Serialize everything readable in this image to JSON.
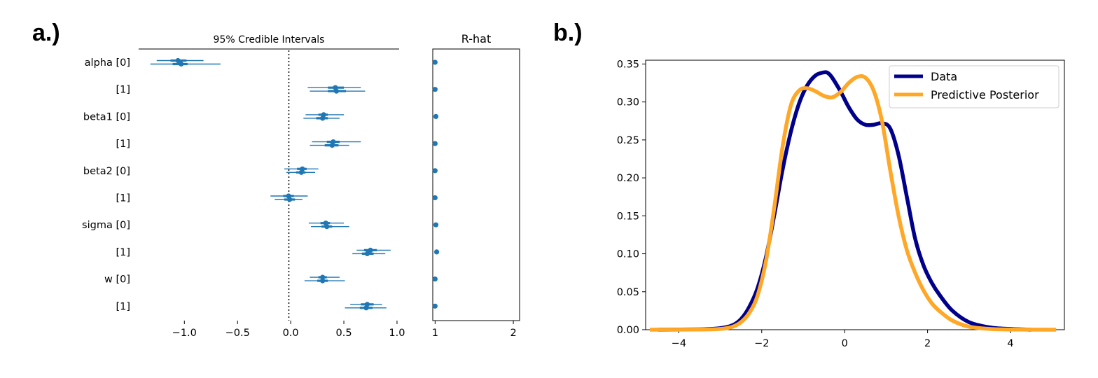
{
  "panel_a": {
    "label": "a.)",
    "forest_title": "95% Credible Intervals",
    "rhat_title": "R-hat",
    "row_labels": [
      "alpha [0]",
      "[1]",
      "beta1 [0]",
      "[1]",
      "beta2 [0]",
      "[1]",
      "sigma [0]",
      "[1]",
      "w [0]",
      "[1]"
    ],
    "x_ticks": [
      "−1.0",
      "−0.5",
      "0.0",
      "0.5",
      "1.0"
    ],
    "rhat_ticks": [
      "1",
      "2"
    ]
  },
  "panel_b": {
    "label": "b.)",
    "y_ticks": [
      "0.00",
      "0.05",
      "0.10",
      "0.15",
      "0.20",
      "0.25",
      "0.30",
      "0.35"
    ],
    "x_ticks": [
      "−4",
      "−2",
      "0",
      "2",
      "4"
    ],
    "legend": [
      "Data",
      "Predictive Posterior"
    ]
  },
  "colors": {
    "forest": "#1f77b4",
    "data": "#00008b",
    "posterior": "#ffa726"
  },
  "chart_data": [
    {
      "type": "forest",
      "title": "95% Credible Intervals",
      "xlim": [
        -1.43,
        1.02
      ],
      "vline": 0.0,
      "parameters": [
        {
          "name": "alpha [0]",
          "chains": [
            {
              "mean": -1.06,
              "hdi50": [
                -1.13,
                -0.98
              ],
              "hdi95": [
                -1.26,
                -0.82
              ]
            },
            {
              "mean": -1.03,
              "hdi50": [
                -1.11,
                -0.97
              ],
              "hdi95": [
                -1.32,
                -0.66
              ]
            }
          ]
        },
        {
          "name": "[1]",
          "chains": [
            {
              "mean": 0.42,
              "hdi50": [
                0.35,
                0.5
              ],
              "hdi95": [
                0.16,
                0.66
              ]
            },
            {
              "mean": 0.43,
              "hdi50": [
                0.35,
                0.52
              ],
              "hdi95": [
                0.18,
                0.7
              ]
            }
          ]
        },
        {
          "name": "beta1 [0]",
          "chains": [
            {
              "mean": 0.31,
              "hdi50": [
                0.26,
                0.35
              ],
              "hdi95": [
                0.14,
                0.5
              ]
            },
            {
              "mean": 0.3,
              "hdi50": [
                0.24,
                0.35
              ],
              "hdi95": [
                0.12,
                0.46
              ]
            }
          ]
        },
        {
          "name": "[1]",
          "chains": [
            {
              "mean": 0.4,
              "hdi50": [
                0.34,
                0.46
              ],
              "hdi95": [
                0.2,
                0.66
              ]
            },
            {
              "mean": 0.39,
              "hdi50": [
                0.32,
                0.45
              ],
              "hdi95": [
                0.18,
                0.55
              ]
            }
          ]
        },
        {
          "name": "beta2 [0]",
          "chains": [
            {
              "mean": 0.11,
              "hdi50": [
                0.06,
                0.15
              ],
              "hdi95": [
                -0.06,
                0.26
              ]
            },
            {
              "mean": 0.1,
              "hdi50": [
                0.05,
                0.14
              ],
              "hdi95": [
                -0.04,
                0.23
              ]
            }
          ]
        },
        {
          "name": "[1]",
          "chains": [
            {
              "mean": -0.02,
              "hdi50": [
                -0.07,
                0.03
              ],
              "hdi95": [
                -0.19,
                0.16
              ]
            },
            {
              "mean": -0.01,
              "hdi50": [
                -0.06,
                0.04
              ],
              "hdi95": [
                -0.15,
                0.11
              ]
            }
          ]
        },
        {
          "name": "sigma [0]",
          "chains": [
            {
              "mean": 0.33,
              "hdi50": [
                0.28,
                0.37
              ],
              "hdi95": [
                0.17,
                0.5
              ]
            },
            {
              "mean": 0.34,
              "hdi50": [
                0.29,
                0.39
              ],
              "hdi95": [
                0.19,
                0.55
              ]
            }
          ]
        },
        {
          "name": "[1]",
          "chains": [
            {
              "mean": 0.75,
              "hdi50": [
                0.69,
                0.81
              ],
              "hdi95": [
                0.62,
                0.94
              ]
            },
            {
              "mean": 0.72,
              "hdi50": [
                0.67,
                0.78
              ],
              "hdi95": [
                0.58,
                0.89
              ]
            }
          ]
        },
        {
          "name": "w [0]",
          "chains": [
            {
              "mean": 0.3,
              "hdi50": [
                0.26,
                0.34
              ],
              "hdi95": [
                0.18,
                0.46
              ]
            },
            {
              "mean": 0.3,
              "hdi50": [
                0.25,
                0.35
              ],
              "hdi95": [
                0.13,
                0.51
              ]
            }
          ]
        },
        {
          "name": "[1]",
          "chains": [
            {
              "mean": 0.72,
              "hdi50": [
                0.66,
                0.78
              ],
              "hdi95": [
                0.56,
                0.86
              ]
            },
            {
              "mean": 0.71,
              "hdi50": [
                0.65,
                0.77
              ],
              "hdi95": [
                0.51,
                0.9
              ]
            }
          ]
        }
      ]
    },
    {
      "type": "scatter",
      "title": "R-hat",
      "xlim": [
        0.97,
        2.08
      ],
      "values": [
        1.0,
        1.0,
        1.01,
        1.0,
        1.0,
        1.0,
        1.01,
        1.02,
        1.0,
        1.0
      ]
    },
    {
      "type": "line",
      "xlim": [
        -4.8,
        5.3
      ],
      "ylim": [
        0.0,
        0.355
      ],
      "legend_position": "upper-right",
      "series": [
        {
          "name": "Data",
          "x": [
            -4.5,
            -3.5,
            -3.0,
            -2.7,
            -2.5,
            -2.3,
            -2.1,
            -1.9,
            -1.7,
            -1.5,
            -1.3,
            -1.1,
            -0.9,
            -0.7,
            -0.5,
            -0.4,
            -0.3,
            -0.1,
            0.1,
            0.3,
            0.5,
            0.7,
            0.9,
            1.1,
            1.3,
            1.5,
            1.7,
            1.9,
            2.1,
            2.3,
            2.6,
            3.0,
            3.5,
            4.0,
            4.5
          ],
          "y": [
            0.0,
            0.0005,
            0.002,
            0.006,
            0.014,
            0.03,
            0.055,
            0.095,
            0.15,
            0.21,
            0.26,
            0.298,
            0.322,
            0.335,
            0.339,
            0.338,
            0.332,
            0.314,
            0.293,
            0.277,
            0.27,
            0.27,
            0.272,
            0.265,
            0.23,
            0.175,
            0.12,
            0.085,
            0.062,
            0.045,
            0.025,
            0.01,
            0.003,
            0.001,
            0.0
          ]
        },
        {
          "name": "Predictive Posterior",
          "x": [
            -4.7,
            -3.5,
            -3.0,
            -2.7,
            -2.5,
            -2.3,
            -2.1,
            -1.9,
            -1.7,
            -1.5,
            -1.3,
            -1.1,
            -0.9,
            -0.7,
            -0.5,
            -0.3,
            -0.1,
            0.1,
            0.3,
            0.5,
            0.7,
            0.9,
            1.1,
            1.3,
            1.5,
            1.7,
            1.9,
            2.1,
            2.3,
            2.6,
            3.0,
            3.5,
            4.0,
            5.1
          ],
          "y": [
            0.0,
            0.0003,
            0.001,
            0.004,
            0.01,
            0.022,
            0.045,
            0.09,
            0.16,
            0.24,
            0.295,
            0.315,
            0.318,
            0.314,
            0.308,
            0.306,
            0.313,
            0.325,
            0.333,
            0.332,
            0.315,
            0.275,
            0.21,
            0.15,
            0.105,
            0.075,
            0.052,
            0.035,
            0.024,
            0.012,
            0.004,
            0.001,
            0.0003,
            0.0
          ]
        }
      ]
    }
  ]
}
